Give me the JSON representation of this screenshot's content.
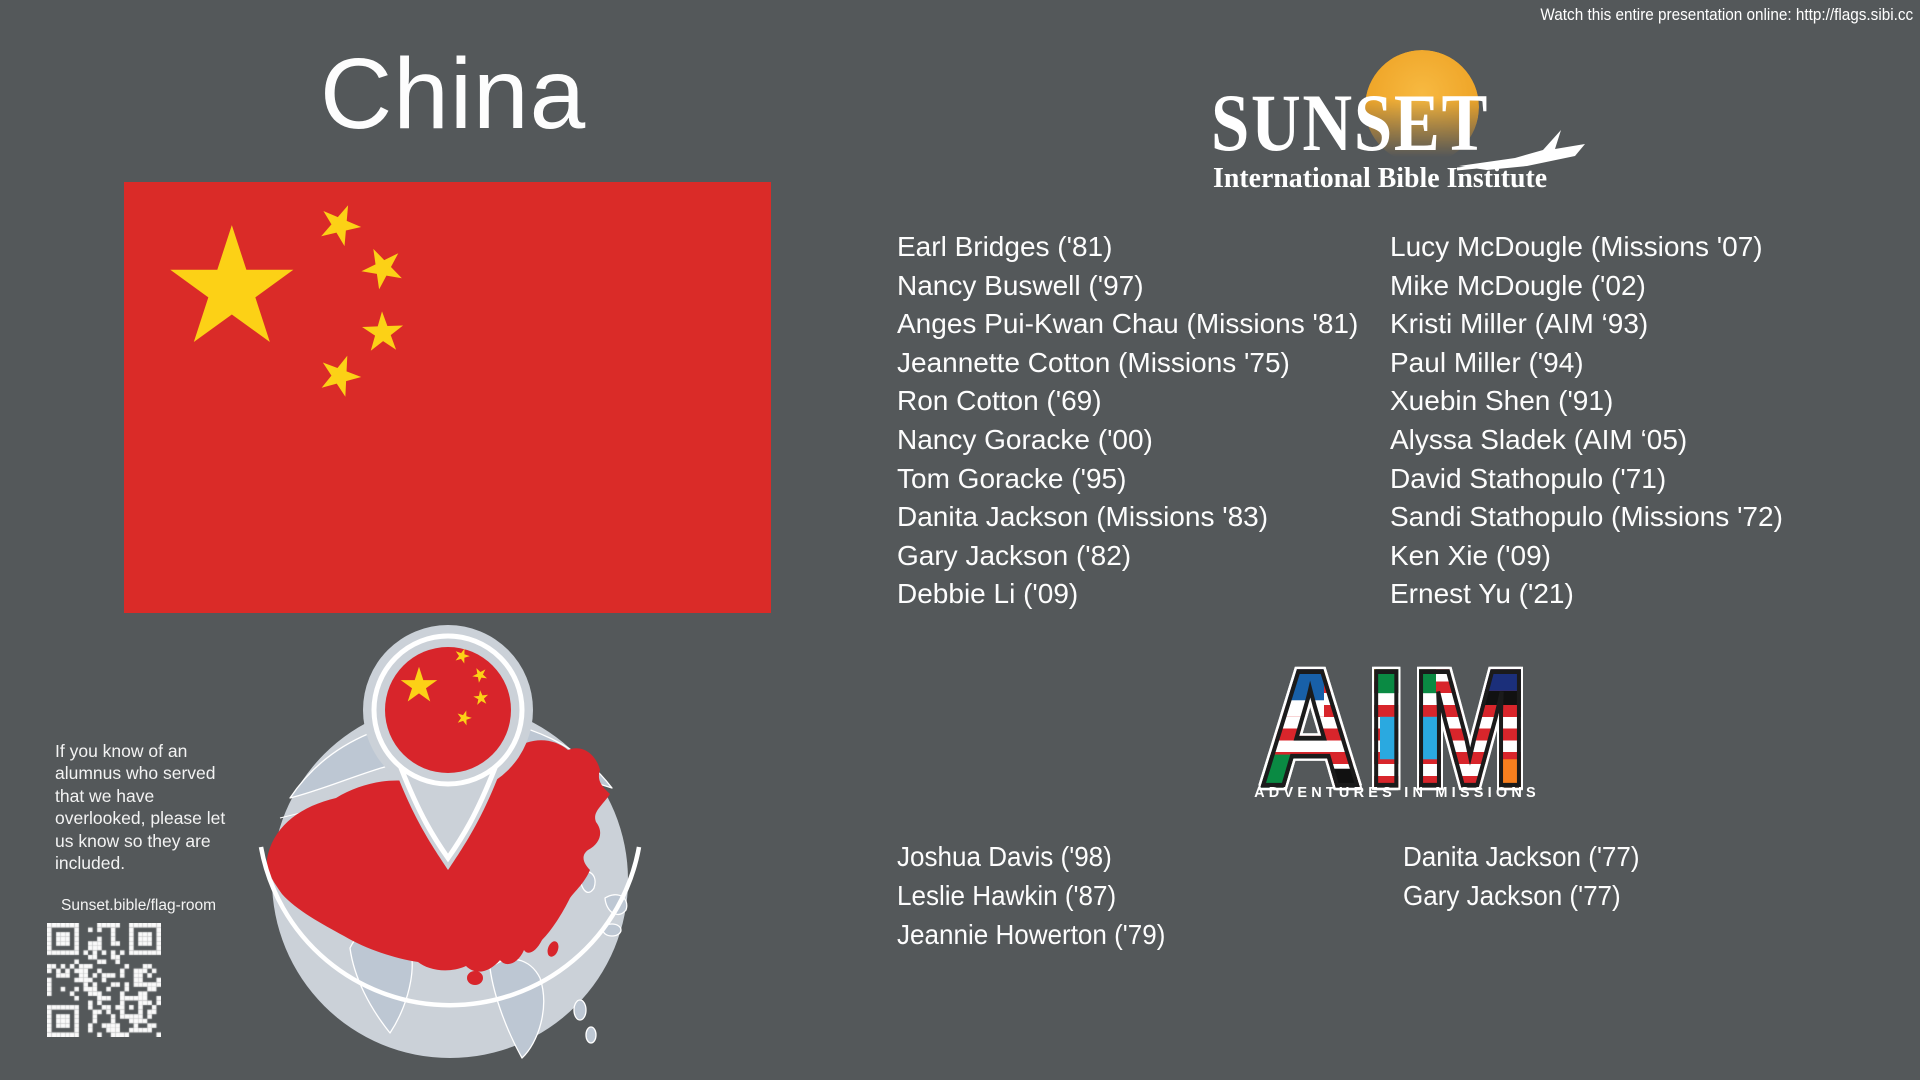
{
  "header": {
    "watch_online": "Watch this entire presentation online: http://flags.sibi.cc"
  },
  "country": {
    "title": "China"
  },
  "sunset_logo": {
    "title": "SUNSET",
    "subtitle": "International Bible Institute"
  },
  "aim_logo": {
    "letters": "AIM",
    "caption": "ADVENTURES IN MISSIONS"
  },
  "alumni": {
    "column1": [
      "Earl Bridges ('81)",
      "Nancy Buswell ('97)",
      "Anges Pui-Kwan Chau (Missions '81)",
      "Jeannette Cotton (Missions '75)",
      "Ron Cotton ('69)",
      "Nancy Goracke ('00)",
      "Tom Goracke ('95)",
      "Danita Jackson (Missions '83)",
      "Gary Jackson ('82)",
      "Debbie Li ('09)"
    ],
    "column2": [
      "Lucy McDougle (Missions '07)",
      "Mike McDougle ('02)",
      "Kristi Miller (AIM ‘93)",
      "Paul Miller ('94)",
      "Xuebin Shen ('91)",
      "Alyssa Sladek (AIM ‘05)",
      "David Stathopulo ('71)",
      "Sandi Stathopulo (Missions '72)",
      "Ken Xie ('09)",
      "Ernest Yu ('21)"
    ]
  },
  "aim_alumni": {
    "column1": [
      "Joshua Davis ('98)",
      "Leslie Hawkin ('87)",
      "Jeannie Howerton ('79)"
    ],
    "column2": [
      "Danita Jackson ('77)",
      "Gary Jackson ('77)"
    ]
  },
  "note": {
    "text": "If you know of an alumnus who served that we have overlooked, please let us know so they are included.",
    "link": "Sunset.bible/flag-room"
  },
  "colors": {
    "background": "#54585a",
    "flag_red": "#da2b28",
    "flag_yellow": "#fcd116",
    "globe_sea": "#cbd1d8",
    "globe_land": "#bdc7d3",
    "sun_orange": "#efa528",
    "text_white": "#fdfdfd"
  }
}
